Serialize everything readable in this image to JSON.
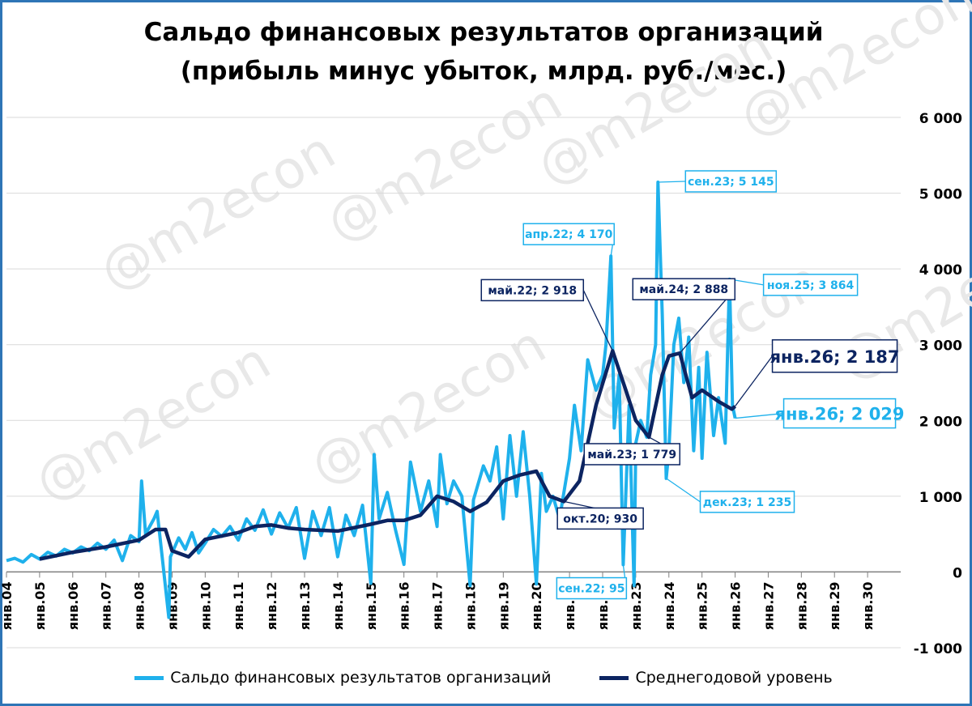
{
  "title_line1": "Сальдо финансовых результатов организаций",
  "title_line2": "(прибыль минус убыток, млрд. руб./мес.)",
  "watermark": "@m2econ",
  "colors": {
    "monthly": "#1fb1ec",
    "average": "#0c2461",
    "grid": "#d9d9d9",
    "border": "#2e75b6"
  },
  "chart_data": {
    "type": "line",
    "ylim": [
      -1000,
      6000
    ],
    "yticks": [
      -1000,
      0,
      1000,
      2000,
      3000,
      4000,
      5000,
      6000
    ],
    "ytick_labels": [
      "-1 000",
      "0",
      "1 000",
      "2 000",
      "3 000",
      "4 000",
      "5 000",
      "6 000"
    ],
    "xlim": [
      2004,
      2031
    ],
    "xtick_labels": [
      "янв.04",
      "янв.05",
      "янв.06",
      "янв.07",
      "янв.08",
      "янв.09",
      "янв.10",
      "янв.11",
      "янв.12",
      "янв.13",
      "янв.14",
      "янв.15",
      "янв.16",
      "янв.17",
      "янв.18",
      "янв.19",
      "янв.20",
      "янв.21",
      "янв.22",
      "янв.23",
      "янв.24",
      "янв.25",
      "янв.26",
      "янв.27",
      "янв.28",
      "янв.29",
      "янв.30"
    ],
    "series": [
      {
        "name": "Сальдо финансовых результатов организаций",
        "points": [
          [
            2004.0,
            150
          ],
          [
            2004.25,
            180
          ],
          [
            2004.5,
            130
          ],
          [
            2004.75,
            230
          ],
          [
            2005.0,
            170
          ],
          [
            2005.25,
            260
          ],
          [
            2005.5,
            210
          ],
          [
            2005.75,
            300
          ],
          [
            2006.0,
            250
          ],
          [
            2006.25,
            330
          ],
          [
            2006.5,
            280
          ],
          [
            2006.75,
            380
          ],
          [
            2007.0,
            300
          ],
          [
            2007.25,
            420
          ],
          [
            2007.5,
            150
          ],
          [
            2007.75,
            480
          ],
          [
            2008.0,
            400
          ],
          [
            2008.08,
            1200
          ],
          [
            2008.2,
            500
          ],
          [
            2008.45,
            700
          ],
          [
            2008.55,
            800
          ],
          [
            2008.7,
            200
          ],
          [
            2008.9,
            -600
          ],
          [
            2008.95,
            200
          ],
          [
            2009.2,
            450
          ],
          [
            2009.4,
            300
          ],
          [
            2009.6,
            520
          ],
          [
            2009.8,
            250
          ],
          [
            2010.0,
            380
          ],
          [
            2010.25,
            560
          ],
          [
            2010.5,
            470
          ],
          [
            2010.75,
            600
          ],
          [
            2011.0,
            420
          ],
          [
            2011.25,
            700
          ],
          [
            2011.5,
            550
          ],
          [
            2011.75,
            820
          ],
          [
            2012.0,
            500
          ],
          [
            2012.25,
            780
          ],
          [
            2012.5,
            580
          ],
          [
            2012.75,
            850
          ],
          [
            2013.0,
            180
          ],
          [
            2013.25,
            800
          ],
          [
            2013.5,
            480
          ],
          [
            2013.75,
            850
          ],
          [
            2014.0,
            200
          ],
          [
            2014.25,
            750
          ],
          [
            2014.5,
            480
          ],
          [
            2014.75,
            880
          ],
          [
            2015.0,
            -150
          ],
          [
            2015.1,
            1550
          ],
          [
            2015.25,
            700
          ],
          [
            2015.5,
            1050
          ],
          [
            2015.75,
            550
          ],
          [
            2016.0,
            100
          ],
          [
            2016.2,
            1450
          ],
          [
            2016.5,
            800
          ],
          [
            2016.75,
            1200
          ],
          [
            2017.0,
            600
          ],
          [
            2017.1,
            1550
          ],
          [
            2017.3,
            900
          ],
          [
            2017.5,
            1200
          ],
          [
            2017.75,
            1000
          ],
          [
            2018.0,
            -180
          ],
          [
            2018.1,
            950
          ],
          [
            2018.4,
            1400
          ],
          [
            2018.6,
            1200
          ],
          [
            2018.8,
            1650
          ],
          [
            2019.0,
            700
          ],
          [
            2019.2,
            1800
          ],
          [
            2019.4,
            1000
          ],
          [
            2019.6,
            1850
          ],
          [
            2019.8,
            1000
          ],
          [
            2020.0,
            -160
          ],
          [
            2020.15,
            1300
          ],
          [
            2020.3,
            800
          ],
          [
            2020.5,
            1000
          ],
          [
            2020.7,
            700
          ],
          [
            2021.0,
            1500
          ],
          [
            2021.15,
            2200
          ],
          [
            2021.35,
            1600
          ],
          [
            2021.55,
            2800
          ],
          [
            2021.8,
            2400
          ],
          [
            2022.0,
            2600
          ],
          [
            2022.1,
            3000
          ],
          [
            2022.25,
            4170
          ],
          [
            2022.35,
            1900
          ],
          [
            2022.5,
            2600
          ],
          [
            2022.62,
            95
          ],
          [
            2022.8,
            2200
          ],
          [
            2022.95,
            -180
          ],
          [
            2023.0,
            1700
          ],
          [
            2023.15,
            2000
          ],
          [
            2023.33,
            1779
          ],
          [
            2023.45,
            2600
          ],
          [
            2023.6,
            3000
          ],
          [
            2023.67,
            5145
          ],
          [
            2023.8,
            3400
          ],
          [
            2023.92,
            1235
          ],
          [
            2024.0,
            1600
          ],
          [
            2024.15,
            3000
          ],
          [
            2024.3,
            3350
          ],
          [
            2024.45,
            2500
          ],
          [
            2024.6,
            3100
          ],
          [
            2024.75,
            1600
          ],
          [
            2024.9,
            2700
          ],
          [
            2025.0,
            1500
          ],
          [
            2025.15,
            2900
          ],
          [
            2025.35,
            1800
          ],
          [
            2025.5,
            2300
          ],
          [
            2025.7,
            1700
          ],
          [
            2025.83,
            3864
          ],
          [
            2025.92,
            2200
          ],
          [
            2026.0,
            2029
          ]
        ]
      },
      {
        "name": "Среднегодовой уровень",
        "points": [
          [
            2005.0,
            170
          ],
          [
            2006.0,
            260
          ],
          [
            2007.0,
            330
          ],
          [
            2008.0,
            420
          ],
          [
            2008.5,
            560
          ],
          [
            2008.8,
            560
          ],
          [
            2009.0,
            280
          ],
          [
            2009.5,
            200
          ],
          [
            2010.0,
            430
          ],
          [
            2011.0,
            520
          ],
          [
            2011.5,
            600
          ],
          [
            2012.0,
            620
          ],
          [
            2012.5,
            580
          ],
          [
            2013.0,
            560
          ],
          [
            2014.0,
            540
          ],
          [
            2015.0,
            630
          ],
          [
            2015.5,
            680
          ],
          [
            2016.0,
            680
          ],
          [
            2016.5,
            750
          ],
          [
            2017.0,
            1000
          ],
          [
            2017.5,
            930
          ],
          [
            2018.0,
            800
          ],
          [
            2018.5,
            920
          ],
          [
            2019.0,
            1200
          ],
          [
            2019.5,
            1280
          ],
          [
            2020.0,
            1330
          ],
          [
            2020.4,
            1000
          ],
          [
            2020.83,
            930
          ],
          [
            2021.3,
            1200
          ],
          [
            2021.8,
            2200
          ],
          [
            2022.3,
            2918
          ],
          [
            2022.7,
            2400
          ],
          [
            2023.0,
            2000
          ],
          [
            2023.4,
            1779
          ],
          [
            2023.8,
            2600
          ],
          [
            2024.0,
            2850
          ],
          [
            2024.33,
            2888
          ],
          [
            2024.7,
            2300
          ],
          [
            2025.0,
            2400
          ],
          [
            2025.5,
            2250
          ],
          [
            2025.9,
            2150
          ],
          [
            2026.0,
            2187
          ]
        ]
      }
    ],
    "annotations": [
      {
        "text": "апр.22; 4 170",
        "x": 2022.25,
        "y": 4170,
        "series": 0
      },
      {
        "text": "сен.23; 5 145",
        "x": 2023.67,
        "y": 5145,
        "series": 0
      },
      {
        "text": "ноя.25; 3 864",
        "x": 2025.83,
        "y": 3864,
        "series": 0
      },
      {
        "text": "дек.23; 1 235",
        "x": 2023.92,
        "y": 1235,
        "series": 0
      },
      {
        "text": "сен.22; 95",
        "x": 2022.62,
        "y": 95,
        "series": 0
      },
      {
        "text": "янв.26; 2 029",
        "x": 2026.0,
        "y": 2029,
        "series": 0
      },
      {
        "text": "май.22; 2 918",
        "x": 2022.3,
        "y": 2918,
        "series": 1
      },
      {
        "text": "май.24; 2 888",
        "x": 2024.33,
        "y": 2888,
        "series": 1
      },
      {
        "text": "май.23; 1 779",
        "x": 2023.4,
        "y": 1779,
        "series": 1
      },
      {
        "text": "окт.20; 930",
        "x": 2020.83,
        "y": 930,
        "series": 1
      },
      {
        "text": "янв.26; 2 187",
        "x": 2026.0,
        "y": 2187,
        "series": 1
      }
    ],
    "grid": true,
    "legend_position": "bottom"
  }
}
